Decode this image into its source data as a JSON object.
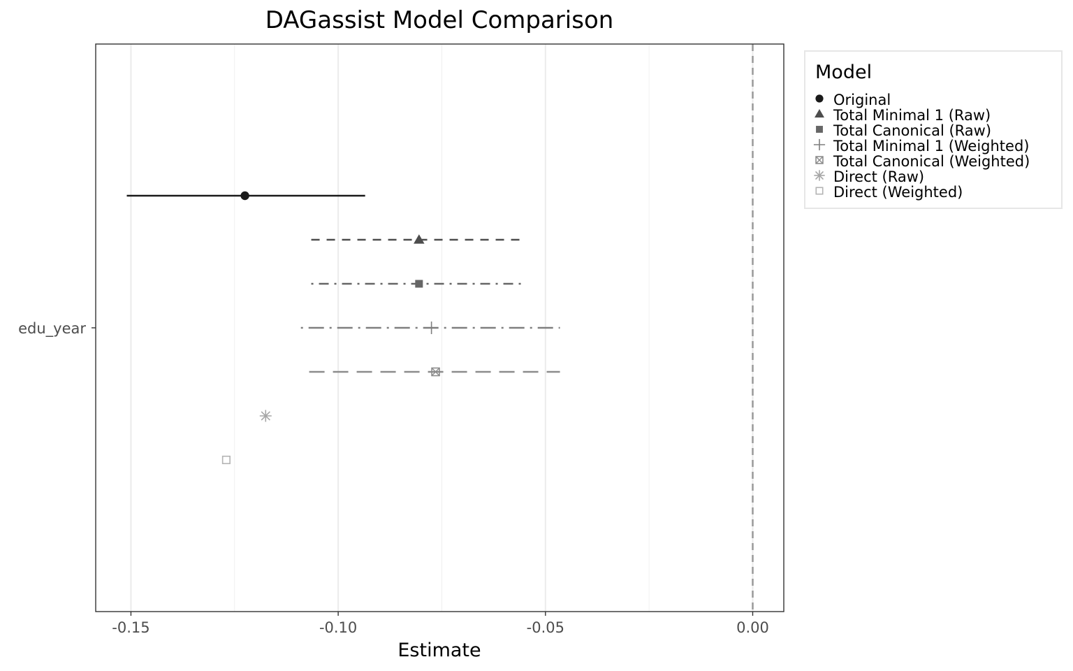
{
  "chart_data": {
    "type": "scatter",
    "title": "DAGassist Model Comparison",
    "xlabel": "Estimate",
    "ylabel": "",
    "categories": [
      "edu_year"
    ],
    "xlim": [
      -0.1585,
      0.0075
    ],
    "xticks": [
      -0.15,
      -0.1,
      -0.05,
      0.0
    ],
    "xtick_labels": [
      "-0.15",
      "-0.10",
      "-0.05",
      "0.00"
    ],
    "minor_gridlines": [
      -0.125,
      -0.075,
      -0.025
    ],
    "reference_line": {
      "x": 0.0,
      "style": "dashed",
      "color": "#999999"
    },
    "grid": true,
    "legend": {
      "title": "Model",
      "position": "right"
    },
    "series": [
      {
        "name": "Original",
        "category": "edu_year",
        "estimate": -0.1225,
        "ci_low": -0.151,
        "ci_high": -0.0935,
        "shape": "circle",
        "line": "solid",
        "color": "#1a1a1a"
      },
      {
        "name": "Total Minimal 1 (Raw)",
        "category": "edu_year",
        "estimate": -0.0805,
        "ci_low": -0.1065,
        "ci_high": -0.055,
        "shape": "triangle",
        "line": "dashed",
        "color": "#4d4d4d"
      },
      {
        "name": "Total Canonical (Raw)",
        "category": "edu_year",
        "estimate": -0.0805,
        "ci_low": -0.1065,
        "ci_high": -0.055,
        "shape": "square",
        "line": "dotdash",
        "color": "#666666"
      },
      {
        "name": "Total Minimal 1 (Weighted)",
        "category": "edu_year",
        "estimate": -0.0775,
        "ci_low": -0.109,
        "ci_high": -0.0465,
        "shape": "plus",
        "line": "longdash-dot",
        "color": "#7f7f7f"
      },
      {
        "name": "Total Canonical (Weighted)",
        "category": "edu_year",
        "estimate": -0.0765,
        "ci_low": -0.107,
        "ci_high": -0.0465,
        "shape": "square-cross",
        "line": "longdash",
        "color": "#8c8c8c"
      },
      {
        "name": "Direct (Raw)",
        "category": "edu_year",
        "estimate": -0.1175,
        "ci_low": null,
        "ci_high": null,
        "shape": "asterisk",
        "line": "none",
        "color": "#a6a6a6"
      },
      {
        "name": "Direct (Weighted)",
        "category": "edu_year",
        "estimate": -0.127,
        "ci_low": null,
        "ci_high": null,
        "shape": "open-square",
        "line": "none",
        "color": "#b3b3b3"
      }
    ]
  }
}
